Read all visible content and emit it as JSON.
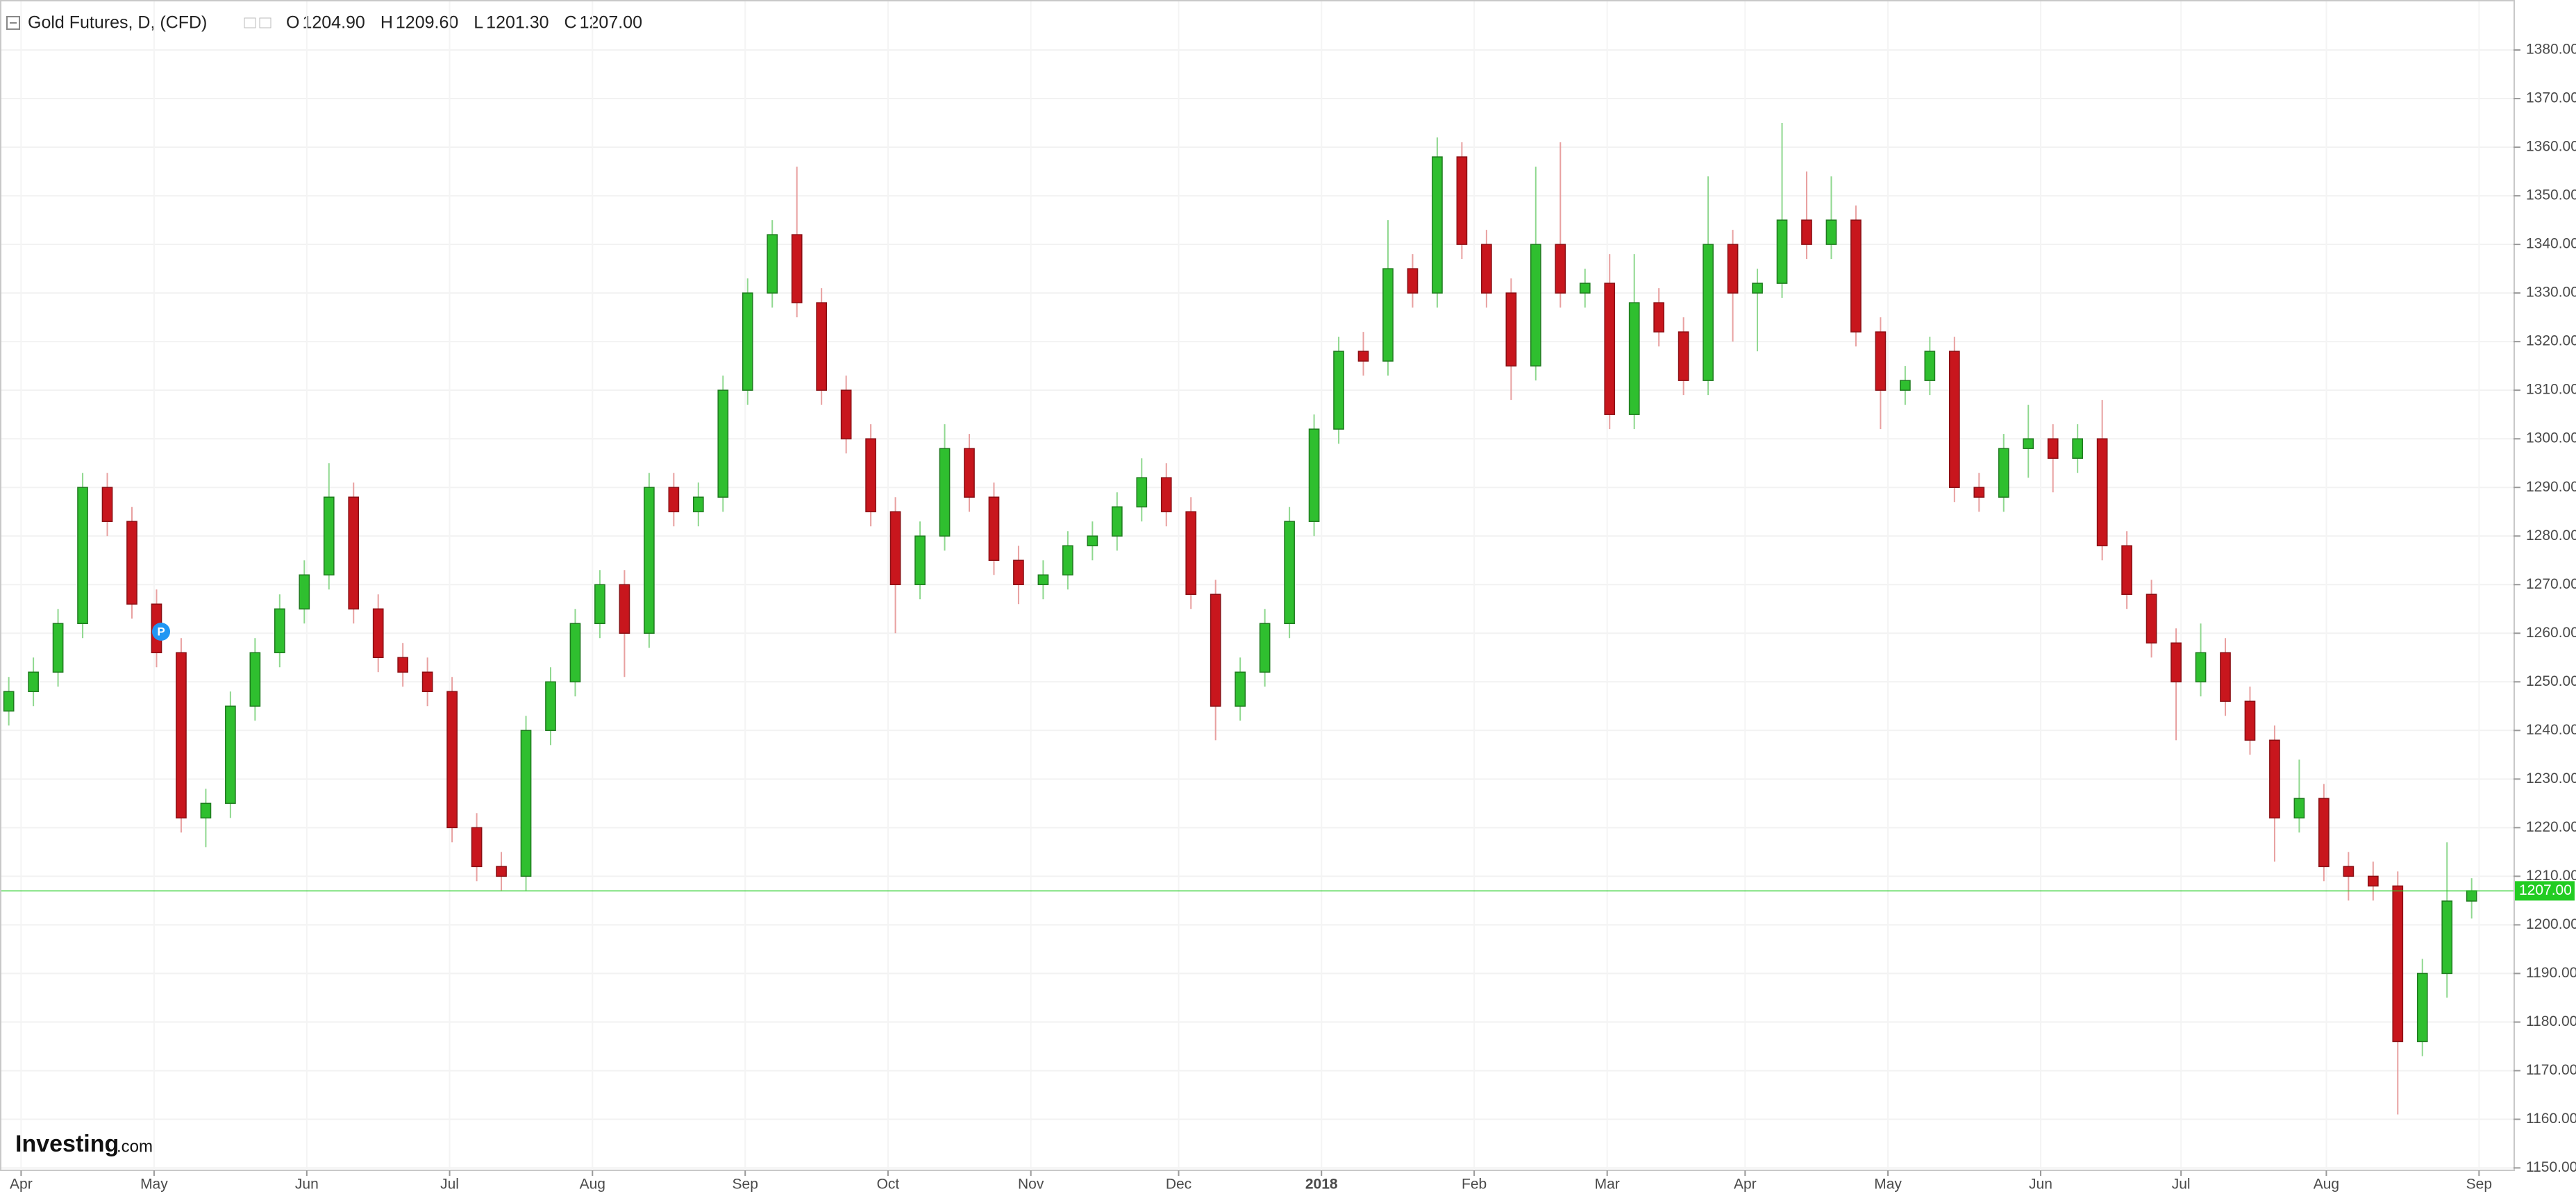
{
  "chart_data": {
    "type": "candlestick",
    "title": "Gold Futures, D, (CFD)",
    "ohlc_header": [
      {
        "key": "O",
        "label": "1204.90"
      },
      {
        "key": "H",
        "label": "1209.60"
      },
      {
        "key": "L",
        "label": "1201.30"
      },
      {
        "key": "C",
        "label": "1207.00"
      }
    ],
    "brand": "Investing",
    "brand_suffix": ".com",
    "marker": "P",
    "up_color": "#2fbf2f",
    "down_color": "#c8161d",
    "last_color": "#22cc22",
    "grid": true,
    "last_price": {
      "value": 1207,
      "label": "1207.00"
    },
    "ylim": [
      1149.5,
      1390
    ],
    "yticks": [
      {
        "value": 1150,
        "label": "1150.00"
      },
      {
        "value": 1160,
        "label": "1160.00"
      },
      {
        "value": 1170,
        "label": "1170.00"
      },
      {
        "value": 1180,
        "label": "1180.00"
      },
      {
        "value": 1190,
        "label": "1190.00"
      },
      {
        "value": 1200,
        "label": "1200.00"
      },
      {
        "value": 1210,
        "label": "1210.00"
      },
      {
        "value": 1220,
        "label": "1220.00"
      },
      {
        "value": 1230,
        "label": "1230.00"
      },
      {
        "value": 1240,
        "label": "1240.00"
      },
      {
        "value": 1250,
        "label": "1250.00"
      },
      {
        "value": 1260,
        "label": "1260.00"
      },
      {
        "value": 1270,
        "label": "1270.00"
      },
      {
        "value": 1280,
        "label": "1280.00"
      },
      {
        "value": 1290,
        "label": "1290.00"
      },
      {
        "value": 1300,
        "label": "1300.00"
      },
      {
        "value": 1310,
        "label": "1310.00"
      },
      {
        "value": 1320,
        "label": "1320.00"
      },
      {
        "value": 1330,
        "label": "1330.00"
      },
      {
        "value": 1340,
        "label": "1340.00"
      },
      {
        "value": 1350,
        "label": "1350.00"
      },
      {
        "value": 1360,
        "label": "1360.00"
      },
      {
        "value": 1370,
        "label": "1370.00"
      },
      {
        "value": 1380,
        "label": "1380.00"
      }
    ],
    "xlim": [
      -0.3,
      101.7
    ],
    "xticks": [
      {
        "value": 0.5,
        "label": "Apr"
      },
      {
        "value": 5.9,
        "label": "May"
      },
      {
        "value": 12.1,
        "label": "Jun"
      },
      {
        "value": 17.9,
        "label": "Jul"
      },
      {
        "value": 23.7,
        "label": "Aug"
      },
      {
        "value": 29.9,
        "label": "Sep"
      },
      {
        "value": 35.7,
        "label": "Oct"
      },
      {
        "value": 41.5,
        "label": "Nov"
      },
      {
        "value": 47.5,
        "label": "Dec"
      },
      {
        "value": 53.3,
        "label": "2018"
      },
      {
        "value": 59.5,
        "label": "Feb"
      },
      {
        "value": 64.9,
        "label": "Mar"
      },
      {
        "value": 70.5,
        "label": "Apr"
      },
      {
        "value": 76.3,
        "label": "May"
      },
      {
        "value": 82.5,
        "label": "Jun"
      },
      {
        "value": 88.2,
        "label": "Jul"
      },
      {
        "value": 94.1,
        "label": "Aug"
      },
      {
        "value": 100.3,
        "label": "Sep"
      }
    ],
    "candles": [
      [
        1244,
        1251,
        1241,
        1248
      ],
      [
        1248,
        1255,
        1245,
        1252
      ],
      [
        1252,
        1265,
        1249,
        1262
      ],
      [
        1262,
        1293,
        1259,
        1290
      ],
      [
        1290,
        1293,
        1280,
        1283
      ],
      [
        1283,
        1286,
        1263,
        1266
      ],
      [
        1266,
        1269,
        1253,
        1256
      ],
      [
        1256,
        1259,
        1219,
        1222
      ],
      [
        1222,
        1228,
        1216,
        1225
      ],
      [
        1225,
        1248,
        1222,
        1245
      ],
      [
        1245,
        1259,
        1242,
        1256
      ],
      [
        1256,
        1268,
        1253,
        1265
      ],
      [
        1265,
        1275,
        1262,
        1272
      ],
      [
        1272,
        1295,
        1269,
        1288
      ],
      [
        1288,
        1291,
        1262,
        1265
      ],
      [
        1265,
        1268,
        1252,
        1255
      ],
      [
        1255,
        1258,
        1249,
        1252
      ],
      [
        1252,
        1255,
        1245,
        1248
      ],
      [
        1248,
        1251,
        1217,
        1220
      ],
      [
        1220,
        1223,
        1209,
        1212
      ],
      [
        1212,
        1215,
        1207,
        1210
      ],
      [
        1210,
        1243,
        1207,
        1240
      ],
      [
        1240,
        1253,
        1237,
        1250
      ],
      [
        1250,
        1265,
        1247,
        1262
      ],
      [
        1262,
        1273,
        1259,
        1270
      ],
      [
        1270,
        1273,
        1251,
        1260
      ],
      [
        1260,
        1293,
        1257,
        1290
      ],
      [
        1290,
        1293,
        1282,
        1285
      ],
      [
        1285,
        1291,
        1282,
        1288
      ],
      [
        1288,
        1313,
        1285,
        1310
      ],
      [
        1310,
        1333,
        1307,
        1330
      ],
      [
        1330,
        1345,
        1327,
        1342
      ],
      [
        1342,
        1356,
        1325,
        1328
      ],
      [
        1328,
        1331,
        1307,
        1310
      ],
      [
        1310,
        1313,
        1297,
        1300
      ],
      [
        1300,
        1303,
        1282,
        1285
      ],
      [
        1285,
        1288,
        1260,
        1270
      ],
      [
        1270,
        1283,
        1267,
        1280
      ],
      [
        1280,
        1303,
        1277,
        1298
      ],
      [
        1298,
        1301,
        1285,
        1288
      ],
      [
        1288,
        1291,
        1272,
        1275
      ],
      [
        1275,
        1278,
        1266,
        1270
      ],
      [
        1270,
        1275,
        1267,
        1272
      ],
      [
        1272,
        1281,
        1269,
        1278
      ],
      [
        1278,
        1283,
        1275,
        1280
      ],
      [
        1280,
        1289,
        1277,
        1286
      ],
      [
        1286,
        1296,
        1283,
        1292
      ],
      [
        1292,
        1295,
        1282,
        1285
      ],
      [
        1285,
        1288,
        1265,
        1268
      ],
      [
        1268,
        1271,
        1238,
        1245
      ],
      [
        1245,
        1255,
        1242,
        1252
      ],
      [
        1252,
        1265,
        1249,
        1262
      ],
      [
        1262,
        1286,
        1259,
        1283
      ],
      [
        1283,
        1305,
        1280,
        1302
      ],
      [
        1302,
        1321,
        1299,
        1318
      ],
      [
        1318,
        1322,
        1313,
        1316
      ],
      [
        1316,
        1345,
        1313,
        1335
      ],
      [
        1335,
        1338,
        1327,
        1330
      ],
      [
        1330,
        1362,
        1327,
        1358
      ],
      [
        1358,
        1361,
        1337,
        1340
      ],
      [
        1340,
        1343,
        1327,
        1330
      ],
      [
        1330,
        1333,
        1308,
        1315
      ],
      [
        1315,
        1356,
        1312,
        1340
      ],
      [
        1340,
        1361,
        1327,
        1330
      ],
      [
        1330,
        1335,
        1327,
        1332
      ],
      [
        1332,
        1338,
        1302,
        1305
      ],
      [
        1305,
        1338,
        1302,
        1328
      ],
      [
        1328,
        1331,
        1319,
        1322
      ],
      [
        1322,
        1325,
        1309,
        1312
      ],
      [
        1312,
        1354,
        1309,
        1340
      ],
      [
        1340,
        1343,
        1320,
        1330
      ],
      [
        1330,
        1335,
        1318,
        1332
      ],
      [
        1332,
        1365,
        1329,
        1345
      ],
      [
        1345,
        1355,
        1337,
        1340
      ],
      [
        1340,
        1354,
        1337,
        1345
      ],
      [
        1345,
        1348,
        1319,
        1322
      ],
      [
        1322,
        1325,
        1302,
        1310
      ],
      [
        1310,
        1315,
        1307,
        1312
      ],
      [
        1312,
        1321,
        1309,
        1318
      ],
      [
        1318,
        1321,
        1287,
        1290
      ],
      [
        1290,
        1293,
        1285,
        1288
      ],
      [
        1288,
        1301,
        1285,
        1298
      ],
      [
        1298,
        1307,
        1292,
        1300
      ],
      [
        1300,
        1303,
        1289,
        1296
      ],
      [
        1296,
        1303,
        1293,
        1300
      ],
      [
        1300,
        1308,
        1275,
        1278
      ],
      [
        1278,
        1281,
        1265,
        1268
      ],
      [
        1268,
        1271,
        1255,
        1258
      ],
      [
        1258,
        1261,
        1238,
        1250
      ],
      [
        1250,
        1262,
        1247,
        1256
      ],
      [
        1256,
        1259,
        1243,
        1246
      ],
      [
        1246,
        1249,
        1235,
        1238
      ],
      [
        1238,
        1241,
        1213,
        1222
      ],
      [
        1222,
        1234,
        1219,
        1226
      ],
      [
        1226,
        1229,
        1209,
        1212
      ],
      [
        1212,
        1215,
        1205,
        1210
      ],
      [
        1210,
        1213,
        1205,
        1208
      ],
      [
        1208,
        1211,
        1161,
        1176
      ],
      [
        1176,
        1193,
        1173,
        1190
      ],
      [
        1190,
        1217,
        1185,
        1204.9
      ],
      [
        1204.9,
        1209.6,
        1201.3,
        1207
      ]
    ]
  }
}
